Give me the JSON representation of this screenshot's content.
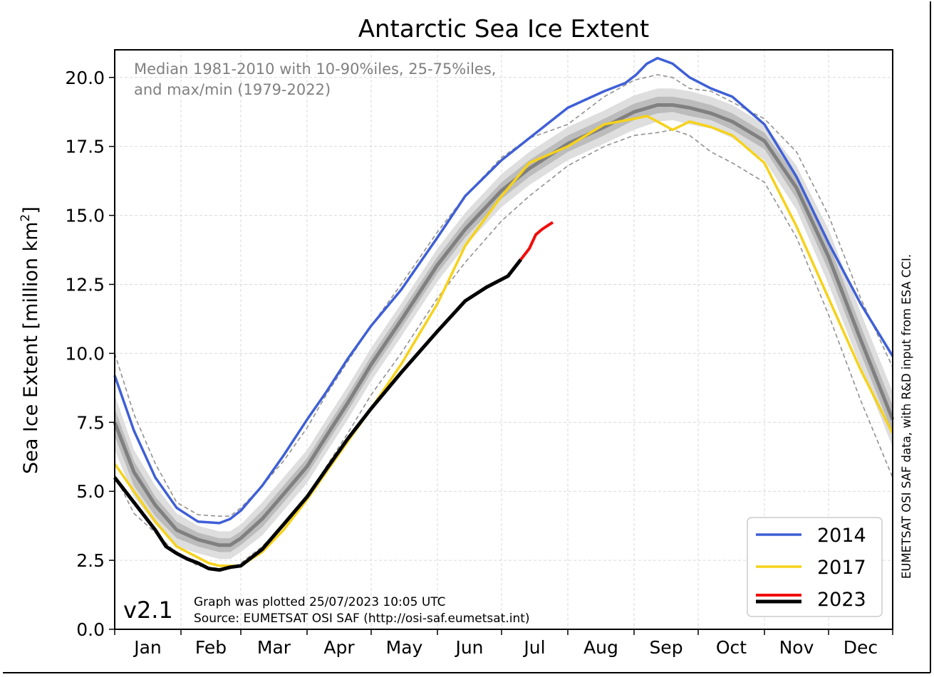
{
  "chart_data": {
    "type": "line",
    "title": "Antarctic Sea Ice Extent",
    "ylabel": "Sea Ice Extent [million km",
    "ylabel_superscript": "2",
    "ylabel_suffix": "]",
    "xlim": [
      1,
      365
    ],
    "ylim": [
      0,
      21
    ],
    "yticks": [
      0,
      2.5,
      5,
      7.5,
      10,
      12.5,
      15,
      17.5,
      20
    ],
    "ytick_labels": [
      "0.0",
      "2.5",
      "5.0",
      "7.5",
      "10.0",
      "12.5",
      "15.0",
      "17.5",
      "20.0"
    ],
    "month_labels": [
      "Jan",
      "Feb",
      "Mar",
      "Apr",
      "May",
      "Jun",
      "Jul",
      "Aug",
      "Sep",
      "Oct",
      "Nov",
      "Dec"
    ],
    "month_starts": [
      1,
      32,
      60,
      91,
      121,
      152,
      182,
      213,
      244,
      274,
      305,
      335,
      365
    ],
    "grid": true,
    "legend_position": "lower-right",
    "annotation": "Median 1981-2010 with 10-90%iles, 25-75%iles,",
    "annotation_line2": "and max/min (1979-2022)",
    "version_label": "v2.1",
    "footer_line1": "Graph was plotted 25/07/2023 10:05 UTC",
    "footer_line2": "Source: EUMETSAT OSI SAF (http://osi-saf.eumetsat.int)",
    "side_note": "EUMETSAT OSI SAF data, with R&D input from ESA CCI.",
    "climatology": {
      "x": [
        1,
        10,
        20,
        30,
        40,
        50,
        55,
        60,
        70,
        80,
        91,
        100,
        110,
        121,
        135,
        152,
        165,
        182,
        195,
        213,
        230,
        244,
        255,
        262,
        270,
        280,
        290,
        305,
        320,
        335,
        350,
        365
      ],
      "median": [
        7.5,
        5.7,
        4.5,
        3.6,
        3.25,
        3.05,
        3.05,
        3.3,
        4.0,
        4.9,
        5.9,
        7.0,
        8.2,
        9.6,
        11.2,
        13.2,
        14.5,
        15.9,
        16.7,
        17.6,
        18.2,
        18.75,
        19.0,
        19.0,
        18.9,
        18.7,
        18.4,
        17.7,
        16.0,
        13.5,
        10.5,
        7.6
      ],
      "p25": [
        7.0,
        5.2,
        4.1,
        3.3,
        3.0,
        2.8,
        2.8,
        3.05,
        3.7,
        4.6,
        5.6,
        6.7,
        7.9,
        9.3,
        10.9,
        12.9,
        14.2,
        15.6,
        16.4,
        17.3,
        17.9,
        18.45,
        18.7,
        18.75,
        18.6,
        18.45,
        18.1,
        17.4,
        15.6,
        13.0,
        10.0,
        7.1
      ],
      "p75": [
        8.0,
        6.1,
        4.8,
        3.9,
        3.5,
        3.3,
        3.3,
        3.55,
        4.3,
        5.2,
        6.2,
        7.3,
        8.5,
        9.9,
        11.5,
        13.5,
        14.8,
        16.2,
        17.0,
        17.9,
        18.5,
        19.05,
        19.3,
        19.3,
        19.2,
        19.0,
        18.7,
        18.0,
        16.4,
        14.0,
        11.0,
        8.1
      ],
      "p10": [
        6.5,
        4.8,
        3.8,
        3.0,
        2.75,
        2.55,
        2.55,
        2.8,
        3.4,
        4.3,
        5.3,
        6.4,
        7.6,
        9.0,
        10.6,
        12.6,
        13.9,
        15.3,
        16.1,
        17.0,
        17.6,
        18.1,
        18.4,
        18.45,
        18.3,
        18.15,
        17.8,
        17.0,
        15.2,
        12.5,
        9.5,
        6.6
      ],
      "p90": [
        8.5,
        6.5,
        5.2,
        4.2,
        3.75,
        3.55,
        3.55,
        3.8,
        4.6,
        5.5,
        6.5,
        7.6,
        8.8,
        10.2,
        11.8,
        13.8,
        15.1,
        16.5,
        17.3,
        18.2,
        18.8,
        19.35,
        19.6,
        19.6,
        19.5,
        19.3,
        19.0,
        18.3,
        16.8,
        14.5,
        11.5,
        8.6
      ],
      "min": [
        5.6,
        4.2,
        3.5,
        2.75,
        2.3,
        2.2,
        2.2,
        2.4,
        3.0,
        3.8,
        4.8,
        5.9,
        7.1,
        8.5,
        10.0,
        12.0,
        13.3,
        14.8,
        15.7,
        16.8,
        17.5,
        17.9,
        18.0,
        18.1,
        17.9,
        17.3,
        16.9,
        16.2,
        14.2,
        11.4,
        8.3,
        5.5
      ],
      "max": [
        10.0,
        7.8,
        6.0,
        4.6,
        4.15,
        4.1,
        4.1,
        4.4,
        5.2,
        6.1,
        7.3,
        8.5,
        9.7,
        11.0,
        12.5,
        14.4,
        15.7,
        17.1,
        17.8,
        18.3,
        19.3,
        19.9,
        20.1,
        20.0,
        19.6,
        19.5,
        19.1,
        18.5,
        17.3,
        15.0,
        12.0,
        9.5
      ]
    },
    "series": [
      {
        "name": "2014",
        "color": "#3e5fd6",
        "x": [
          1,
          10,
          20,
          30,
          40,
          50,
          55,
          60,
          70,
          80,
          91,
          100,
          110,
          121,
          135,
          152,
          165,
          182,
          195,
          213,
          230,
          240,
          245,
          250,
          255,
          262,
          270,
          280,
          290,
          305,
          320,
          335,
          350,
          365
        ],
        "values": [
          9.2,
          7.2,
          5.5,
          4.4,
          3.9,
          3.85,
          4.0,
          4.3,
          5.2,
          6.3,
          7.6,
          8.6,
          9.8,
          11.0,
          12.3,
          14.2,
          15.7,
          17.0,
          17.8,
          18.9,
          19.5,
          19.8,
          20.1,
          20.5,
          20.7,
          20.5,
          20.0,
          19.6,
          19.3,
          18.3,
          16.4,
          14.0,
          11.8,
          9.9
        ]
      },
      {
        "name": "2017",
        "color": "#f6d21a",
        "x": [
          1,
          10,
          20,
          30,
          40,
          45,
          50,
          55,
          60,
          70,
          80,
          91,
          100,
          110,
          121,
          135,
          152,
          165,
          182,
          195,
          213,
          230,
          244,
          250,
          255,
          262,
          270,
          280,
          290,
          305,
          320,
          335,
          350,
          365
        ],
        "values": [
          6.0,
          5.0,
          3.9,
          3.0,
          2.6,
          2.4,
          2.3,
          2.3,
          2.3,
          2.8,
          3.6,
          4.7,
          5.7,
          6.8,
          8.0,
          9.6,
          11.8,
          13.9,
          15.7,
          16.9,
          17.5,
          18.3,
          18.5,
          18.6,
          18.4,
          18.1,
          18.4,
          18.2,
          17.9,
          16.9,
          14.6,
          12.0,
          9.4,
          7.1
        ]
      },
      {
        "name": "2023",
        "color": "#f20c0c",
        "x": [
          191,
          195,
          198,
          201,
          204,
          206
        ],
        "values": [
          13.4,
          13.8,
          14.3,
          14.5,
          14.65,
          14.75
        ]
      }
    ],
    "series_2023_early": {
      "color": "#000000",
      "x": [
        1,
        10,
        20,
        25,
        30,
        35,
        40,
        45,
        50,
        55,
        60,
        65,
        70,
        80,
        91,
        100,
        110,
        121,
        135,
        152,
        165,
        175,
        185,
        191
      ],
      "values": [
        5.5,
        4.6,
        3.6,
        3.0,
        2.75,
        2.55,
        2.4,
        2.2,
        2.15,
        2.25,
        2.3,
        2.6,
        2.9,
        3.8,
        4.8,
        5.8,
        6.9,
        8.0,
        9.3,
        10.8,
        11.9,
        12.4,
        12.8,
        13.4
      ]
    }
  }
}
